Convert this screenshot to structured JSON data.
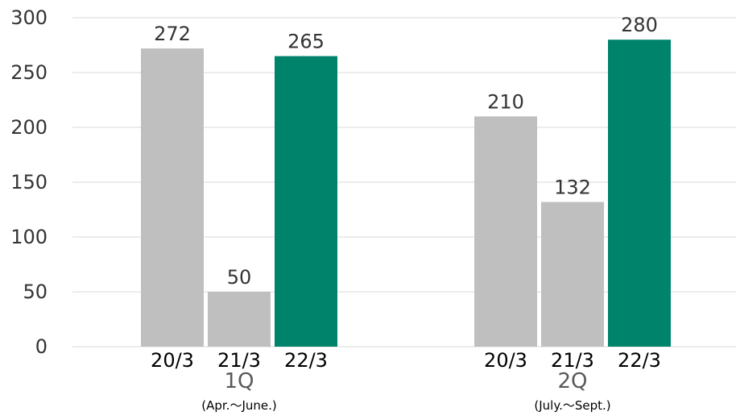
{
  "chart_data": {
    "type": "bar",
    "title": "",
    "xlabel": "",
    "ylabel": "",
    "ylim": [
      0,
      300
    ],
    "yticks": [
      0,
      50,
      100,
      150,
      200,
      250,
      300
    ],
    "grid": true,
    "colors": {
      "previous_years": "#bfbfbf",
      "current_year": "#00836b",
      "gridline": "#d9d9d9"
    },
    "groups": [
      {
        "label": "1Q",
        "sublabel": "(Apr.～June.)",
        "bars": [
          {
            "category": "20/3",
            "value": 272,
            "highlight": false
          },
          {
            "category": "21/3",
            "value": 50,
            "highlight": false
          },
          {
            "category": "22/3",
            "value": 265,
            "highlight": true
          }
        ]
      },
      {
        "label": "2Q",
        "sublabel": "(July.～Sept.)",
        "bars": [
          {
            "category": "20/3",
            "value": 210,
            "highlight": false
          },
          {
            "category": "21/3",
            "value": 132,
            "highlight": false
          },
          {
            "category": "22/3",
            "value": 280,
            "highlight": true
          }
        ]
      }
    ]
  }
}
